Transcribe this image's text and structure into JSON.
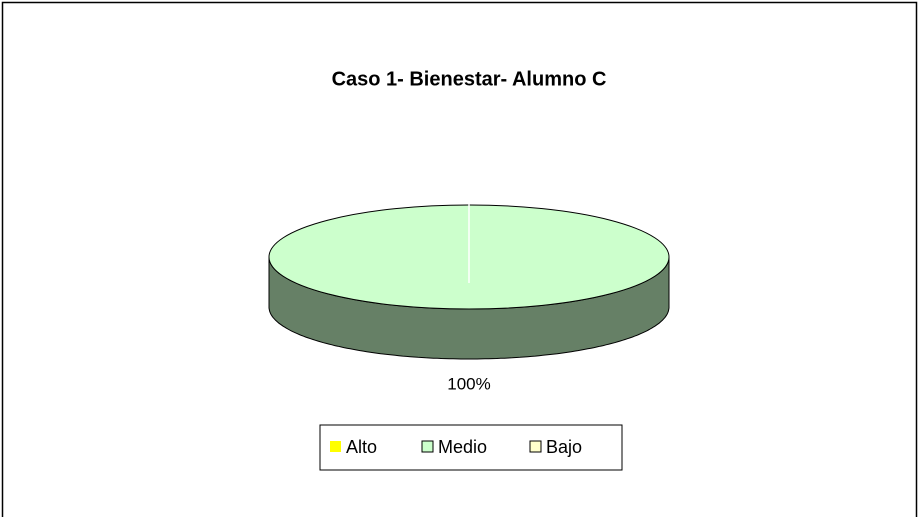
{
  "chart_data": {
    "type": "pie",
    "title": "Caso 1- Bienestar- Alumno C",
    "categories": [
      "Alto",
      "Medio",
      "Bajo"
    ],
    "values": [
      0,
      100,
      0
    ],
    "value_labels": [
      null,
      "100%",
      null
    ],
    "colors": [
      "#ffff00",
      "#ccffcc",
      "#ffffcc"
    ],
    "legend": "bottom"
  }
}
